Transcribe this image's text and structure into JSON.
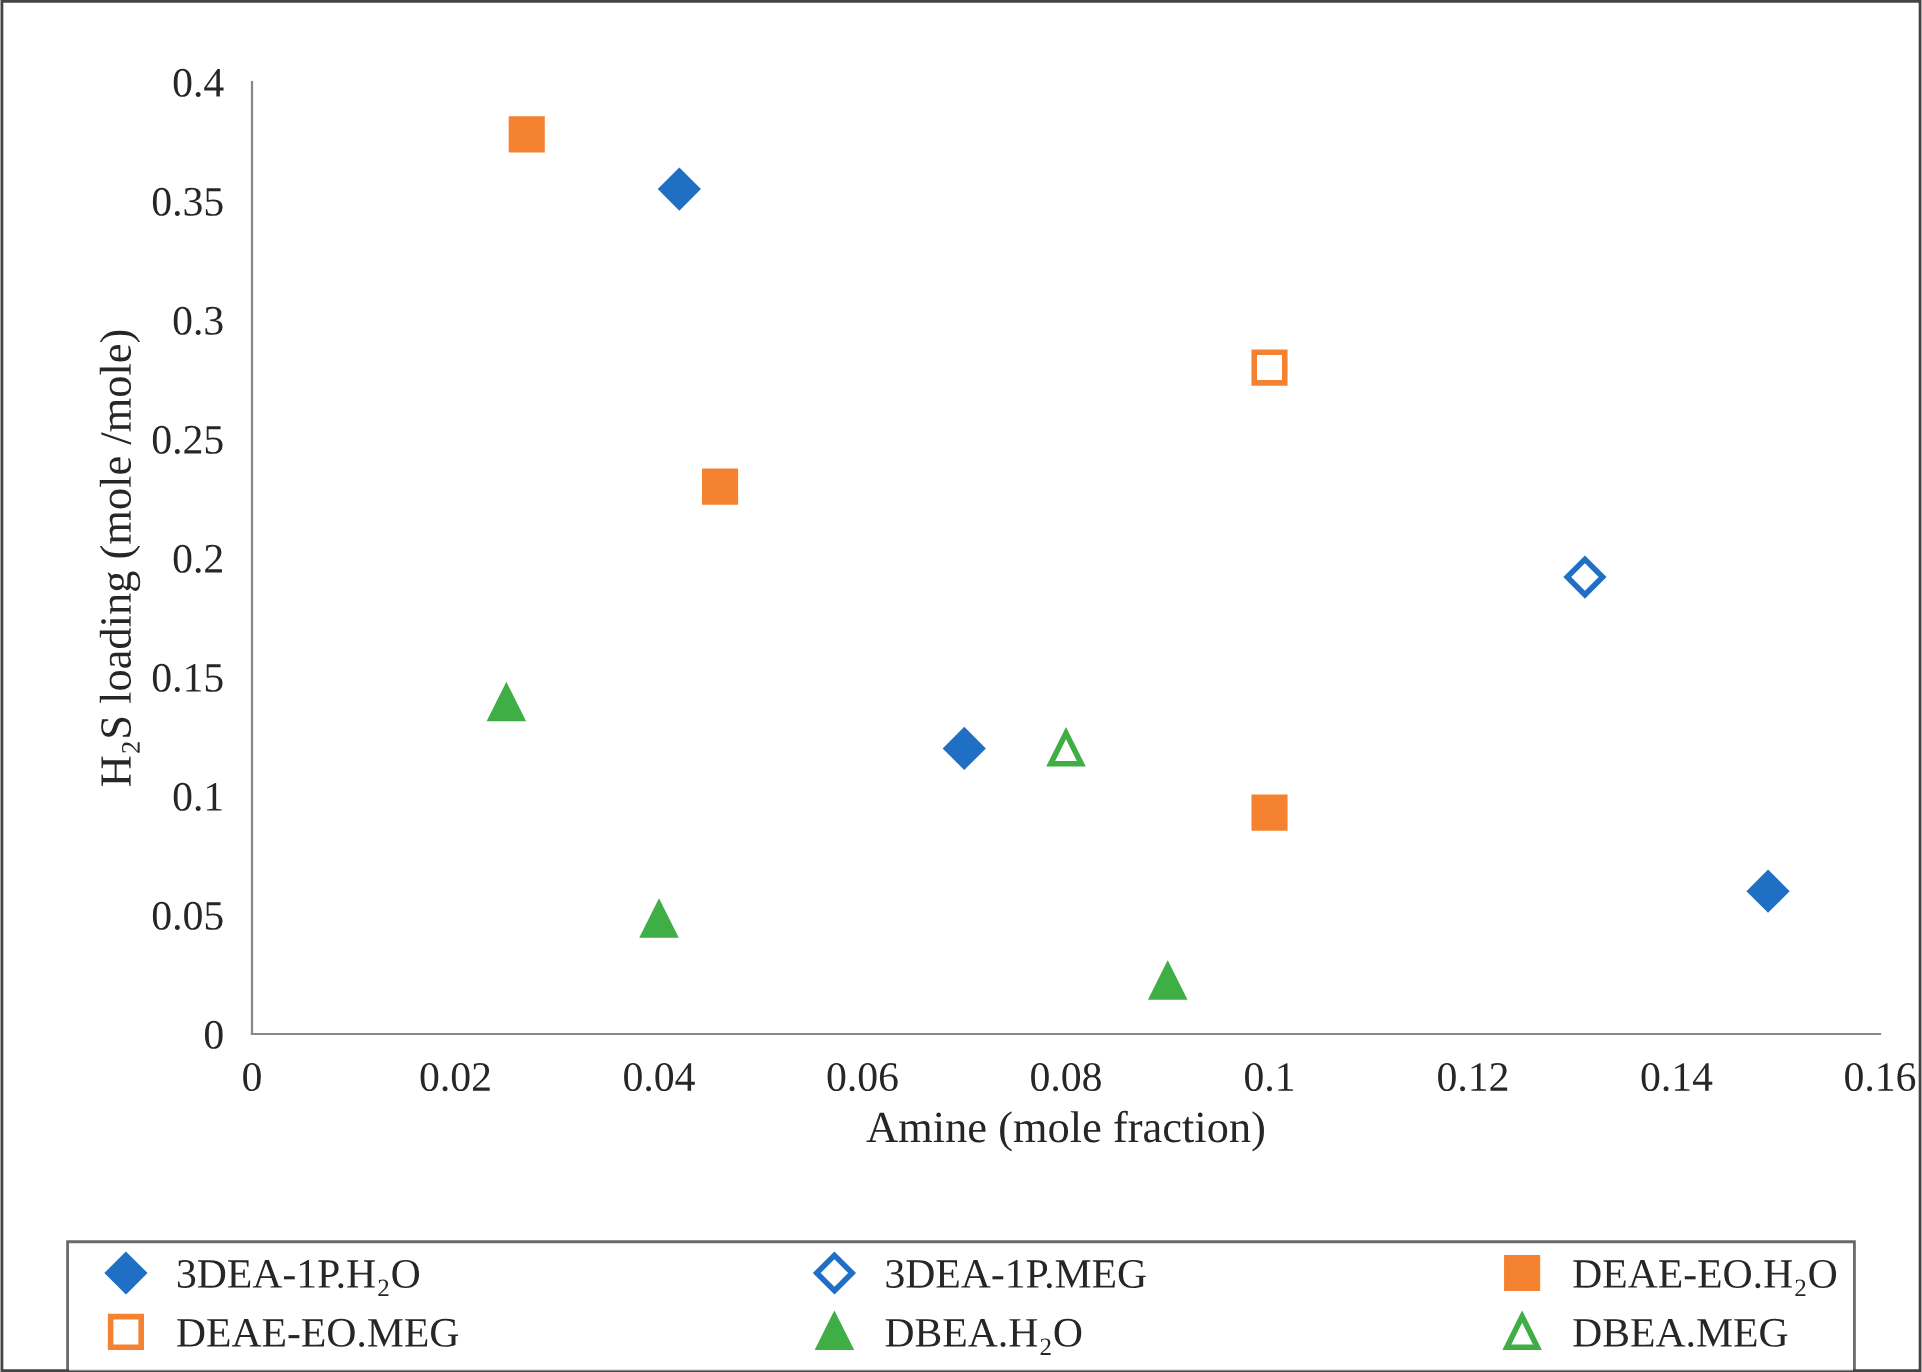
{
  "chart_data": {
    "type": "scatter",
    "xlabel": "Amine (mole fraction)",
    "ylabel": "H₂S loading (mole /mole)",
    "xlim": [
      0,
      0.16
    ],
    "xticks": [
      0,
      0.02,
      0.04,
      0.06,
      0.08,
      0.1,
      0.12,
      0.14,
      0.16
    ],
    "ylim": [
      0,
      0.4
    ],
    "yticks": [
      0,
      0.05,
      0.1,
      0.15,
      0.2,
      0.25,
      0.3,
      0.35,
      0.4
    ],
    "grid": false,
    "legend": "bottom",
    "series": [
      {
        "name": "3DEA-1P.H₂O",
        "color": "#1f6fc5",
        "marker": "diamond",
        "x": [
          0.042,
          0.07,
          0.149
        ],
        "values": [
          0.355,
          0.12,
          0.06
        ]
      },
      {
        "name": "3DEA-1P.MEG",
        "color": "#1f6fc5",
        "marker": "diamond",
        "x": [
          0.131
        ],
        "values": [
          0.192
        ]
      },
      {
        "name": "DEAE-EO.H₂O",
        "color": "#f58231",
        "marker": "square",
        "x": [
          0.027,
          0.046,
          0.1
        ],
        "values": [
          0.378,
          0.23,
          0.093
        ]
      },
      {
        "name": "DEAE-EO.MEG",
        "color": "#f58231",
        "marker": "square",
        "x": [
          0.1
        ],
        "values": [
          0.28
        ]
      },
      {
        "name": "DBEA.H₂O",
        "color": "#3fae45",
        "marker": "triangle",
        "x": [
          0.025,
          0.04,
          0.09
        ],
        "values": [
          0.139,
          0.048,
          0.022
        ]
      },
      {
        "name": "DBEA.MEG",
        "color": "#3fae45",
        "marker": "triangle",
        "x": [
          0.08
        ],
        "values": [
          0.12
        ]
      }
    ]
  }
}
